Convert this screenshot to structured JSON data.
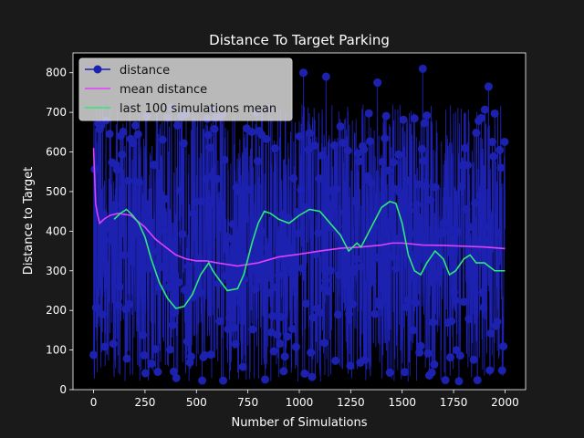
{
  "chart_data": {
    "type": "line",
    "title": "Distance To Target Parking",
    "xlabel": "Number of Simulations",
    "ylabel": "Distance to Target",
    "xlim": [
      -100,
      2100
    ],
    "ylim": [
      0,
      850
    ],
    "xticks": [
      0,
      250,
      500,
      750,
      1000,
      1250,
      1500,
      1750,
      2000
    ],
    "yticks": [
      0,
      100,
      200,
      300,
      400,
      500,
      600,
      700,
      800
    ],
    "grid": false,
    "legend_position": "upper-left",
    "colors": {
      "background": "#1a1a1a",
      "axes": "#000000",
      "text": "#ffffff",
      "distance": "#1c21b0",
      "mean": "#e040fb",
      "last100": "#2ee87a",
      "legend_bg": "#d9d9d9"
    },
    "series": [
      {
        "name": "distance",
        "style": "line-with-markers",
        "x_range": [
          0,
          2000
        ],
        "min_value": 20,
        "max_value": 810,
        "notable_points": [
          {
            "x": 1600,
            "y": 810
          },
          {
            "x": 1920,
            "y": 765
          },
          {
            "x": 1380,
            "y": 775
          },
          {
            "x": 1130,
            "y": 790
          },
          {
            "x": 1020,
            "y": 800
          }
        ]
      },
      {
        "name": "mean distance",
        "x": [
          0,
          10,
          20,
          30,
          50,
          80,
          120,
          180,
          250,
          300,
          350,
          400,
          450,
          500,
          550,
          600,
          700,
          800,
          900,
          1000,
          1100,
          1200,
          1300,
          1400,
          1450,
          1500,
          1600,
          1700,
          1800,
          1900,
          2000
        ],
        "y": [
          610,
          470,
          440,
          420,
          430,
          440,
          445,
          440,
          410,
          380,
          360,
          340,
          330,
          325,
          325,
          320,
          312,
          320,
          335,
          342,
          350,
          357,
          360,
          365,
          370,
          370,
          365,
          364,
          362,
          360,
          356
        ]
      },
      {
        "name": "last 100 simulations mean",
        "x": [
          100,
          130,
          160,
          190,
          220,
          250,
          280,
          320,
          360,
          400,
          440,
          480,
          520,
          560,
          580,
          600,
          650,
          700,
          730,
          770,
          800,
          830,
          860,
          900,
          950,
          1000,
          1050,
          1100,
          1150,
          1200,
          1240,
          1280,
          1300,
          1350,
          1400,
          1440,
          1470,
          1500,
          1530,
          1560,
          1590,
          1620,
          1660,
          1700,
          1730,
          1760,
          1800,
          1830,
          1860,
          1900,
          1950,
          2000
        ],
        "y": [
          430,
          445,
          455,
          440,
          420,
          385,
          330,
          270,
          230,
          205,
          210,
          240,
          290,
          320,
          300,
          285,
          250,
          255,
          290,
          370,
          420,
          450,
          445,
          430,
          420,
          440,
          455,
          450,
          420,
          390,
          350,
          370,
          360,
          410,
          460,
          475,
          470,
          420,
          340,
          300,
          290,
          320,
          350,
          330,
          290,
          300,
          330,
          340,
          320,
          320,
          300,
          300
        ]
      }
    ]
  }
}
